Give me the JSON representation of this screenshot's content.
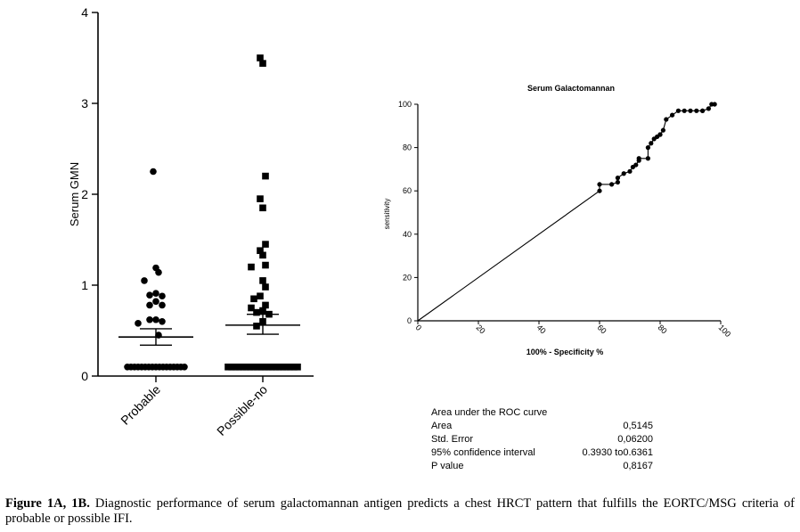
{
  "chart_data": [
    {
      "type": "scatter",
      "ylabel": "Serum GMN",
      "ylim": [
        0,
        4
      ],
      "yticks": [
        "0",
        "1",
        "2",
        "3",
        "4"
      ],
      "categories": [
        "Probable",
        "Possible-no"
      ],
      "series": [
        {
          "category": "Probable",
          "marker": "circle",
          "mean": 0.43,
          "sem_low": 0.34,
          "sem_high": 0.52,
          "points": [
            2.25,
            1.19,
            1.14,
            1.05,
            0.91,
            0.89,
            0.88,
            0.82,
            0.78,
            0.78,
            0.62,
            0.62,
            0.6,
            0.58,
            0.45,
            0.1,
            0.1,
            0.1,
            0.1,
            0.1,
            0.1,
            0.1,
            0.1,
            0.1,
            0.1,
            0.1,
            0.1,
            0.1,
            0.1,
            0.1,
            0.1,
            0.1
          ]
        },
        {
          "category": "Possible-no",
          "marker": "square",
          "mean": 0.56,
          "sem_low": 0.46,
          "sem_high": 0.68,
          "points": [
            3.5,
            3.44,
            2.2,
            1.95,
            1.85,
            1.45,
            1.38,
            1.33,
            1.22,
            1.2,
            1.05,
            0.98,
            0.88,
            0.85,
            0.78,
            0.75,
            0.72,
            0.7,
            0.68,
            0.6,
            0.55,
            0.1,
            0.1,
            0.1,
            0.1,
            0.1,
            0.1,
            0.1,
            0.1,
            0.1,
            0.1,
            0.1,
            0.1,
            0.1,
            0.1,
            0.1,
            0.1,
            0.1,
            0.1,
            0.1,
            0.1
          ]
        }
      ]
    },
    {
      "type": "line",
      "title": "Serum Galactomannan",
      "xlabel": "100% - Specificity %",
      "ylabel": "sensitivity",
      "xlim": [
        0,
        100
      ],
      "ylim": [
        0,
        100
      ],
      "xticks": [
        "0",
        "20",
        "40",
        "60",
        "80",
        "100"
      ],
      "yticks": [
        "0",
        "20",
        "40",
        "60",
        "80",
        "100"
      ],
      "series": [
        {
          "name": "",
          "x": [
            0,
            60,
            60,
            64,
            66,
            66,
            68,
            70,
            71,
            72,
            73,
            73,
            76,
            76,
            77,
            78,
            79,
            80,
            80,
            81,
            82,
            84,
            86,
            88,
            90,
            92,
            94,
            94,
            96,
            97,
            98
          ],
          "y": [
            0,
            60,
            63,
            63,
            64,
            66,
            68,
            69,
            71,
            72,
            74,
            75,
            75,
            80,
            82,
            84,
            85,
            86,
            86,
            88,
            93,
            95,
            97,
            97,
            97,
            97,
            97,
            97,
            98,
            100,
            100
          ]
        }
      ],
      "table": {
        "header": "Area under the ROC curve",
        "rows": [
          {
            "label": "Area",
            "value": "0,5145"
          },
          {
            "label": "Std. Error",
            "value": "0,06200"
          },
          {
            "label": "95% confidence interval",
            "value": "0.3930 to0.6361"
          },
          {
            "label": "P value",
            "value": "0,8167"
          }
        ]
      }
    }
  ],
  "caption": {
    "label": "Figure 1A, 1B.",
    "text": " Diagnostic performance of serum galactomannan antigen predicts a chest HRCT pattern that fulfills the EORTC/MSG criteria of probable or possible IFI."
  }
}
